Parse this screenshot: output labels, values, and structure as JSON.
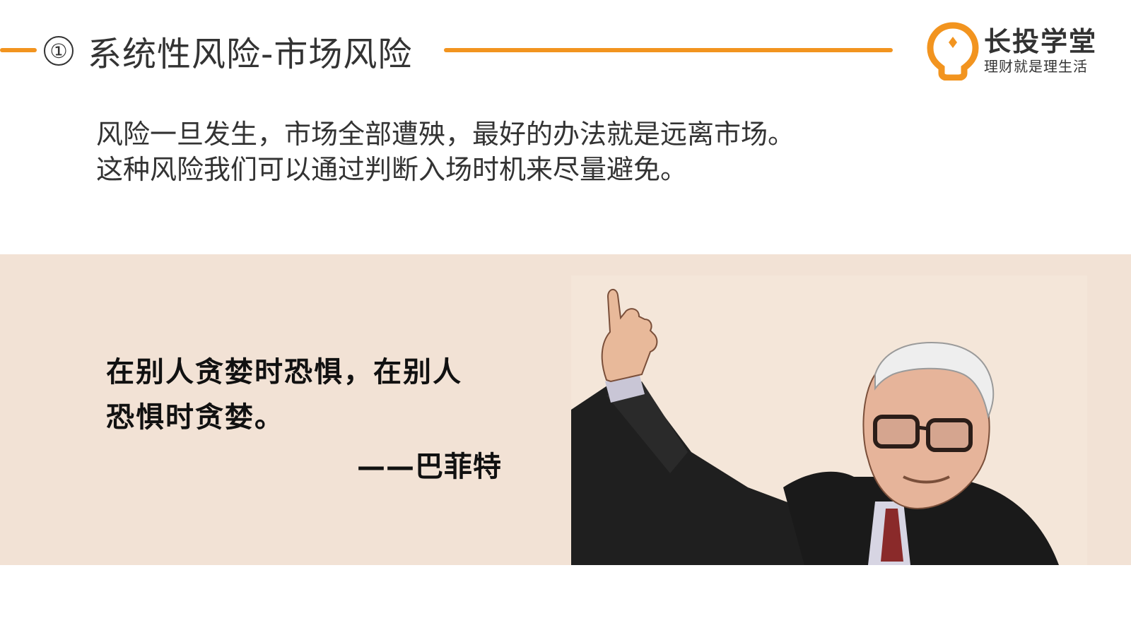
{
  "slide": {
    "number": "①",
    "title": "系统性风险-市场风险",
    "accent_color": "#f2941f",
    "band_color": "#f2e2d5"
  },
  "logo": {
    "name": "长投学堂",
    "slogan": "理财就是理生活",
    "icon": "lightbulb-icon"
  },
  "body": {
    "line1": "风险一旦发生，市场全部遭殃，最好的办法就是远离市场。",
    "line2": "这种风险我们可以通过判断入场时机来尽量避免。"
  },
  "quote": {
    "line1": "在别人贪婪时恐惧，在别人",
    "line2": "恐惧时贪婪。",
    "author": "——巴菲特"
  },
  "illustration": {
    "icon": "buffett-portrait-illustration"
  }
}
